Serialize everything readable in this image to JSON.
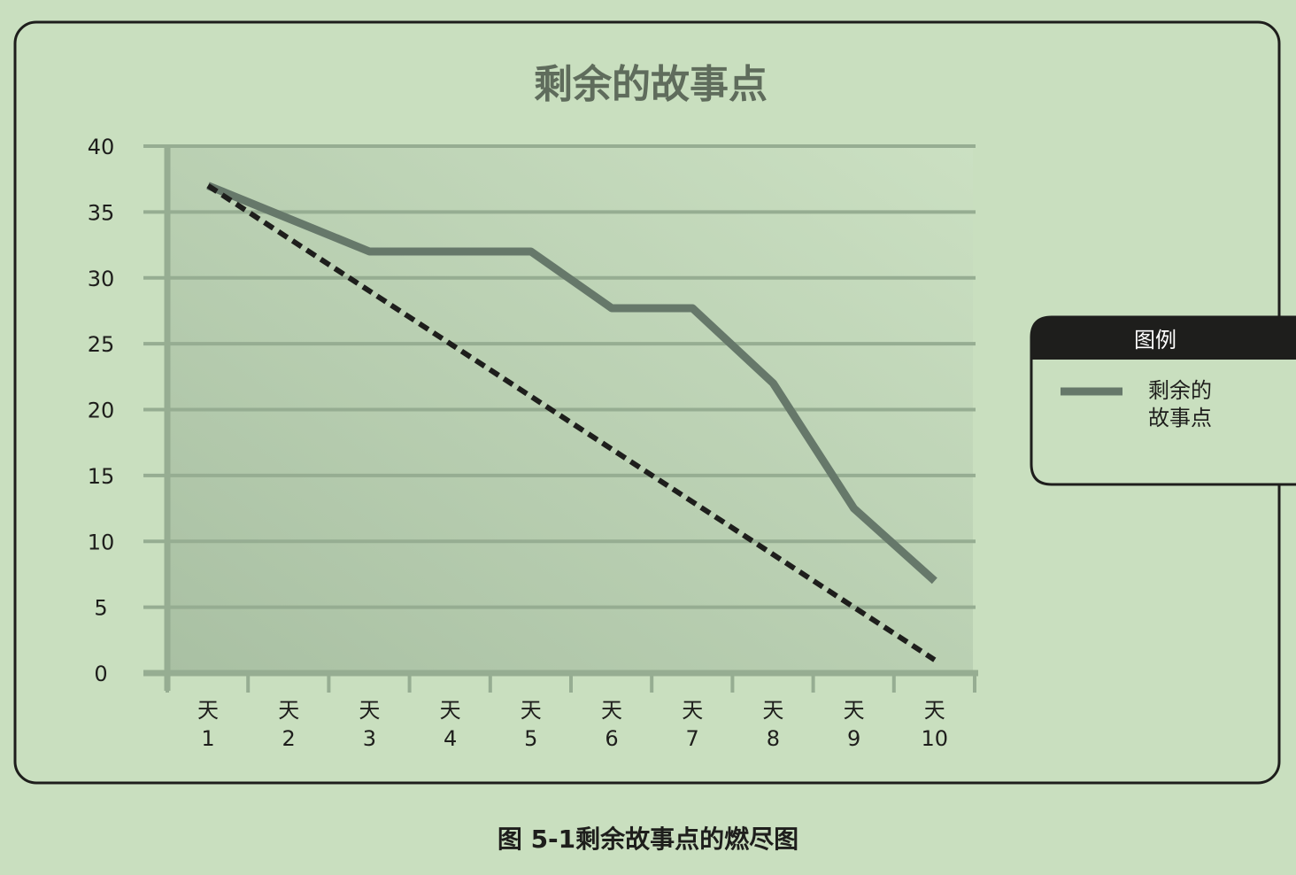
{
  "caption": "图 5-1剩余故事点的燃尽图",
  "colors": {
    "background": "#c9dfbf",
    "series_actual": "#66786a",
    "series_ideal": "#1e1e1c",
    "grid": "#96ad92",
    "frame": "#1e1e1c"
  },
  "chart_data": {
    "type": "line",
    "title": "剩余的故事点",
    "xlabel": "",
    "ylabel": "",
    "categories": [
      "天\n1",
      "天\n2",
      "天\n3",
      "天\n4",
      "天\n5",
      "天\n6",
      "天\n7",
      "天\n8",
      "天\n9",
      "天\n10"
    ],
    "category_top": "天",
    "category_numbers": [
      "1",
      "2",
      "3",
      "4",
      "5",
      "6",
      "7",
      "8",
      "9",
      "10"
    ],
    "y_ticks": [
      0,
      5,
      10,
      15,
      20,
      25,
      30,
      35,
      40
    ],
    "ylim": [
      0,
      40
    ],
    "grid": true,
    "legend": {
      "title": "图例",
      "placement": "right",
      "entries": [
        "剩余的故事点"
      ],
      "entry_lines": [
        "剩余的",
        "故事点"
      ]
    },
    "series": [
      {
        "name": "剩余的故事点",
        "style": "solid",
        "values": [
          37,
          34.5,
          32,
          32,
          32,
          27.7,
          27.7,
          22,
          12.5,
          7
        ]
      },
      {
        "style": "dashed",
        "values": [
          37,
          33,
          29,
          25,
          21,
          17,
          13,
          9,
          5,
          1
        ]
      }
    ]
  }
}
